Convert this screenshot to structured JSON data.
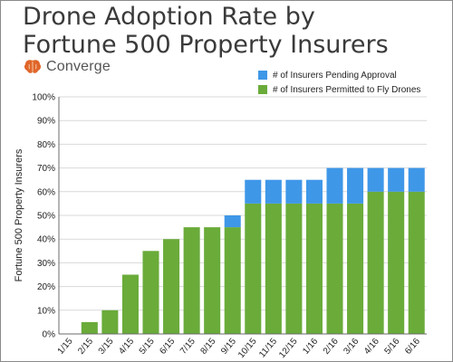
{
  "title_lines": [
    "Drone Adoption Rate by",
    "Fortune 500 Property Insurers"
  ],
  "brand": {
    "name": "Converge",
    "icon": "brain-icon",
    "icon_color": "#e0662a"
  },
  "colors": {
    "permitted": "#6aab3a",
    "pending": "#3f97e8",
    "grid": "#d9d9d9",
    "axis": "#6b6b6b"
  },
  "chart_data": {
    "type": "bar",
    "stacked": true,
    "title": "Drone Adoption Rate by Fortune 500 Property Insurers",
    "xlabel": "",
    "ylabel": "Fortune 500 Property Insurers",
    "ylim": [
      0,
      100
    ],
    "yticks": [
      "0%",
      "10%",
      "20%",
      "30%",
      "40%",
      "50%",
      "60%",
      "70%",
      "80%",
      "90%",
      "100%"
    ],
    "grid": true,
    "legend": "top-right",
    "categories": [
      "1/15",
      "2/15",
      "3/15",
      "4/15",
      "5/15",
      "6/15",
      "7/15",
      "8/15",
      "9/15",
      "10/15",
      "11/15",
      "12/15",
      "1/16",
      "2/16",
      "3/16",
      "4/16",
      "5/16",
      "6/16"
    ],
    "series": [
      {
        "name": "# of Insurers Permitted to Fly Drones",
        "color": "#6aab3a",
        "values": [
          0,
          5,
          10,
          25,
          35,
          40,
          45,
          45,
          45,
          55,
          55,
          55,
          55,
          55,
          55,
          60,
          60,
          60
        ]
      },
      {
        "name": "# of Insurers Pending Approval",
        "color": "#3f97e8",
        "values": [
          0,
          0,
          0,
          0,
          0,
          0,
          0,
          0,
          5,
          10,
          10,
          10,
          10,
          15,
          15,
          10,
          10,
          10
        ]
      }
    ]
  }
}
